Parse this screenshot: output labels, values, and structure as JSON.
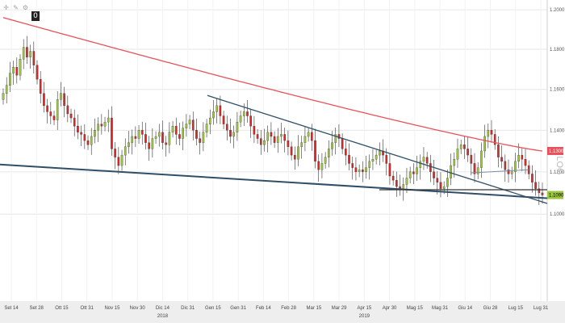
{
  "toolbar": {
    "icons": [
      "crosshair-icon",
      "draw-icon",
      "settings-icon"
    ],
    "badge": "0"
  },
  "colors": {
    "up_candle": "#9bc53d",
    "down_candle": "#d62828",
    "ma_line": "#e8515b",
    "trend_line": "#2f4f68",
    "grid": "#e6e6e6",
    "axis_bg": "#eeeeee",
    "ma_tag": "#e8515b",
    "price_tag": "#9bc53d"
  },
  "chart_data": {
    "type": "candlestick",
    "scale": "log",
    "scale_label": "LOG",
    "ylim": [
      1.06,
      1.205
    ],
    "y_ticks": [
      "1.2000",
      "1.1800",
      "1.1600",
      "1.1400",
      "1.1200",
      "1.1000"
    ],
    "y_tick_values": [
      1.2,
      1.18,
      1.16,
      1.14,
      1.12,
      1.1
    ],
    "x_ticks": [
      "Set 14",
      "Set 28",
      "Ott 15",
      "Ott 31",
      "Nov 15",
      "Nov 30",
      "Dic 14",
      "Dic 31",
      "Gen 15",
      "Gen 31",
      "Feb 14",
      "Feb 28",
      "Mar 15",
      "Mar 29",
      "Apr 15",
      "Apr 30",
      "Mag 15",
      "Mag 31",
      "Giu 14",
      "Giu 28",
      "Lug 15",
      "Lug 31"
    ],
    "x_years": [
      {
        "label": "2018",
        "at": 6
      },
      {
        "label": "2019",
        "at": 14
      }
    ],
    "price_labels": [
      {
        "value": 1.13,
        "label": "1.1300",
        "kind": "ma"
      },
      {
        "value": 1.109,
        "label": "1.1090",
        "kind": "price"
      }
    ],
    "candles_close": [
      1.158,
      1.162,
      1.168,
      1.171,
      1.167,
      1.175,
      1.181,
      1.176,
      1.179,
      1.172,
      1.165,
      1.158,
      1.152,
      1.149,
      1.147,
      1.145,
      1.155,
      1.158,
      1.152,
      1.148,
      1.146,
      1.142,
      1.139,
      1.138,
      1.135,
      1.133,
      1.137,
      1.14,
      1.143,
      1.142,
      1.144,
      1.146,
      1.131,
      1.127,
      1.123,
      1.128,
      1.132,
      1.134,
      1.137,
      1.136,
      1.14,
      1.138,
      1.134,
      1.131,
      1.136,
      1.137,
      1.139,
      1.134,
      1.133,
      1.139,
      1.142,
      1.138,
      1.136,
      1.141,
      1.143,
      1.145,
      1.14,
      1.136,
      1.134,
      1.139,
      1.143,
      1.146,
      1.149,
      1.152,
      1.147,
      1.143,
      1.14,
      1.137,
      1.139,
      1.144,
      1.147,
      1.149,
      1.147,
      1.142,
      1.138,
      1.136,
      1.133,
      1.135,
      1.139,
      1.137,
      1.134,
      1.137,
      1.138,
      1.135,
      1.132,
      1.128,
      1.126,
      1.132,
      1.134,
      1.137,
      1.139,
      1.135,
      1.125,
      1.121,
      1.124,
      1.127,
      1.131,
      1.134,
      1.138,
      1.136,
      1.131,
      1.128,
      1.124,
      1.122,
      1.12,
      1.121,
      1.12,
      1.122,
      1.125,
      1.126,
      1.128,
      1.13,
      1.128,
      1.124,
      1.118,
      1.116,
      1.113,
      1.112,
      1.114,
      1.117,
      1.12,
      1.119,
      1.122,
      1.125,
      1.127,
      1.124,
      1.12,
      1.117,
      1.115,
      1.112,
      1.113,
      1.117,
      1.123,
      1.126,
      1.131,
      1.133,
      1.131,
      1.128,
      1.124,
      1.119,
      1.122,
      1.13,
      1.137,
      1.14,
      1.138,
      1.133,
      1.127,
      1.125,
      1.121,
      1.119,
      1.12,
      1.125,
      1.128,
      1.126,
      1.123,
      1.119,
      1.115,
      1.112,
      1.11,
      1.109
    ]
  }
}
